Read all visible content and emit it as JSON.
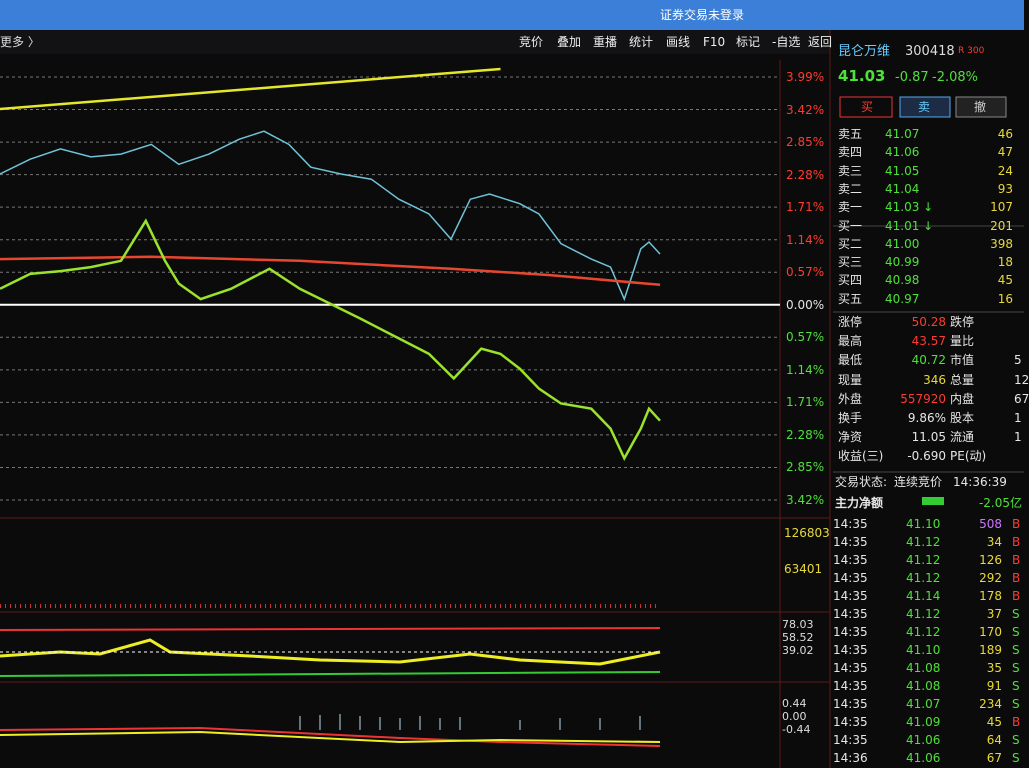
{
  "top_bar": {
    "title": "证券交易未登录"
  },
  "toolbar": {
    "more": "更多 〉",
    "buttons": [
      "竞价",
      "叠加",
      "重播",
      "统计",
      "画线",
      "F10",
      "标记",
      "-自选",
      "返回"
    ]
  },
  "chart": {
    "xlim": [
      0,
      240
    ],
    "ylim": [
      -3.42,
      3.99
    ],
    "yticks": [
      {
        "value": 3.99,
        "label": "3.99%"
      },
      {
        "value": 3.42,
        "label": "3.42%"
      },
      {
        "value": 2.85,
        "label": "2.85%"
      },
      {
        "value": 2.28,
        "label": "2.28%"
      },
      {
        "value": 1.71,
        "label": "1.71%"
      },
      {
        "value": 1.14,
        "label": "1.14%"
      },
      {
        "value": 0.57,
        "label": "0.57%"
      },
      {
        "value": 0,
        "label": "0.00%"
      },
      {
        "value": -0.57,
        "label": "0.57%"
      },
      {
        "value": -1.14,
        "label": "1.14%"
      },
      {
        "value": -1.71,
        "label": "1.71%"
      },
      {
        "value": -2.28,
        "label": "2.28%"
      },
      {
        "value": -2.85,
        "label": "2.85%"
      },
      {
        "value": -3.42,
        "label": "3.42%"
      }
    ],
    "series": [
      {
        "color": "#e6e62a",
        "x": [
          0,
          182
        ],
        "values": [
          3.43,
          4.13
        ]
      },
      {
        "color": "#6fc3d8",
        "x": [
          0,
          11,
          22,
          33,
          44,
          55,
          65,
          76,
          87,
          96,
          105,
          113,
          124,
          135,
          145,
          156,
          164,
          171,
          178,
          189,
          196,
          204,
          215,
          222,
          227,
          233,
          236,
          240
        ],
        "values": [
          2.29,
          2.55,
          2.73,
          2.59,
          2.64,
          2.81,
          2.46,
          2.64,
          2.9,
          3.04,
          2.81,
          2.41,
          2.29,
          2.2,
          1.85,
          1.59,
          1.15,
          1.85,
          1.94,
          1.77,
          1.59,
          1.07,
          0.8,
          0.66,
          0.1,
          0.98,
          1.1,
          0.89
        ]
      },
      {
        "color": "#e8472f",
        "x": [
          0,
          55,
          109,
          164,
          200,
          240
        ],
        "values": [
          0.8,
          0.84,
          0.77,
          0.63,
          0.52,
          0.35
        ]
      },
      {
        "color": "#9be22a",
        "x": [
          0,
          11,
          22,
          33,
          44,
          53,
          60,
          65,
          73,
          84,
          98,
          109,
          120,
          131,
          145,
          156,
          165,
          175,
          182,
          189,
          196,
          204,
          215,
          222,
          227,
          233,
          236,
          240
        ],
        "values": [
          0.28,
          0.54,
          0.59,
          0.66,
          0.77,
          1.47,
          0.77,
          0.37,
          0.1,
          0.28,
          0.63,
          0.28,
          0.02,
          -0.24,
          -0.59,
          -0.86,
          -1.29,
          -0.77,
          -0.86,
          -1.12,
          -1.47,
          -1.73,
          -1.82,
          -2.17,
          -2.69,
          -2.17,
          -1.82,
          -2.03
        ]
      }
    ]
  },
  "volume_labels": [
    "126803",
    "63401"
  ],
  "indicator_labels": [
    "78.03",
    "58.52",
    "39.02"
  ],
  "macd_labels": [
    "0.44",
    "0.00",
    "-0.44"
  ],
  "quote": {
    "name": "昆仑万维",
    "code": "300418",
    "badge": "R 300",
    "price": "41.03",
    "change": "-0.87",
    "pct": "-2.08%"
  },
  "trade_buttons": [
    "买",
    "卖",
    "撤"
  ],
  "order_book": [
    [
      "卖五",
      "41.07",
      "46"
    ],
    [
      "卖四",
      "41.06",
      "47"
    ],
    [
      "卖三",
      "41.05",
      "24"
    ],
    [
      "卖二",
      "41.04",
      "93"
    ],
    [
      "卖一",
      "41.03 ↓",
      "107"
    ],
    [
      "买一",
      "41.01 ↓",
      "201"
    ],
    [
      "买二",
      "41.00",
      "398"
    ],
    [
      "买三",
      "40.99",
      "18"
    ],
    [
      "买四",
      "40.98",
      "45"
    ],
    [
      "买五",
      "40.97",
      "16"
    ]
  ],
  "stats": [
    [
      "涨停",
      "50.28",
      "跌停",
      ""
    ],
    [
      "最高",
      "43.57",
      "量比",
      ""
    ],
    [
      "最低",
      "40.72",
      "市值",
      "5"
    ],
    [
      "现量",
      "346",
      "总量",
      "12"
    ],
    [
      "外盘",
      "557920",
      "内盘",
      "67"
    ],
    [
      "换手",
      "9.86%",
      "股本",
      "1"
    ],
    [
      "净资",
      "11.05",
      "流通",
      "1"
    ],
    [
      "收益(三)",
      "-0.690",
      "PE(动)",
      ""
    ]
  ],
  "status": {
    "label": "交易状态:",
    "state": "连续竞价",
    "time": "14:36:39"
  },
  "main_flow": {
    "label": "主力净额",
    "value": "-2.05亿"
  },
  "ticks": [
    [
      "14:35",
      "41.10",
      "508",
      "B"
    ],
    [
      "14:35",
      "41.12",
      "34",
      "B"
    ],
    [
      "14:35",
      "41.12",
      "126",
      "B"
    ],
    [
      "14:35",
      "41.12",
      "292",
      "B"
    ],
    [
      "14:35",
      "41.14",
      "178",
      "B"
    ],
    [
      "14:35",
      "41.12",
      "37",
      "S"
    ],
    [
      "14:35",
      "41.12",
      "170",
      "S"
    ],
    [
      "14:35",
      "41.10",
      "189",
      "S"
    ],
    [
      "14:35",
      "41.08",
      "35",
      "S"
    ],
    [
      "14:35",
      "41.08",
      "91",
      "S"
    ],
    [
      "14:35",
      "41.07",
      "234",
      "S"
    ],
    [
      "14:35",
      "41.09",
      "45",
      "B"
    ],
    [
      "14:35",
      "41.06",
      "64",
      "S"
    ],
    [
      "14:36",
      "41.06",
      "67",
      "S"
    ]
  ]
}
